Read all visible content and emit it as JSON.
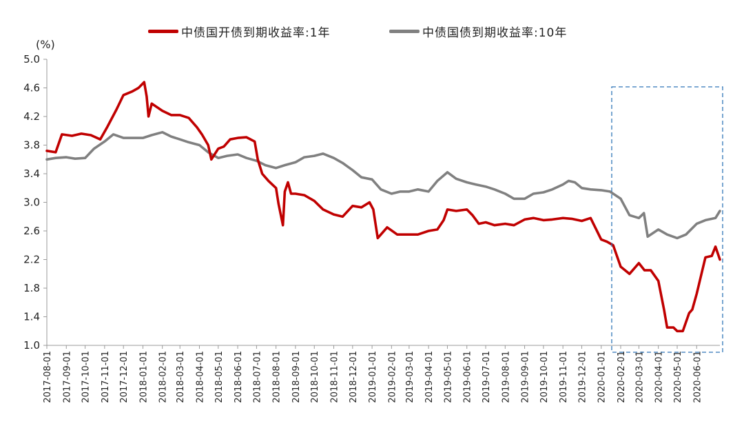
{
  "chart_data": {
    "type": "line",
    "unit_label": "(%)",
    "ylim": [
      1.0,
      5.0
    ],
    "y_ticks": [
      "1.0",
      "1.4",
      "1.8",
      "2.2",
      "2.6",
      "3.0",
      "3.4",
      "3.8",
      "4.2",
      "4.6",
      "5.0"
    ],
    "x_ticks": [
      "2017-08-01",
      "2017-09-01",
      "2017-10-01",
      "2017-11-01",
      "2017-12-01",
      "2018-01-01",
      "2018-02-01",
      "2018-03-01",
      "2018-04-01",
      "2018-05-01",
      "2018-06-01",
      "2018-07-01",
      "2018-08-01",
      "2018-09-01",
      "2018-10-01",
      "2018-11-01",
      "2018-12-01",
      "2019-01-01",
      "2019-02-01",
      "2019-03-01",
      "2019-04-01",
      "2019-05-01",
      "2019-06-01",
      "2019-07-01",
      "2019-08-01",
      "2019-09-01",
      "2019-10-01",
      "2019-11-01",
      "2019-12-01",
      "2020-01-01",
      "2020-02-01",
      "2020-03-01",
      "2020-04-01",
      "2020-05-01",
      "2020-06-01"
    ],
    "xlim": [
      "2017-08-01",
      "2020-07-08"
    ],
    "grid": false,
    "legend_position": "top-center",
    "annotation": "dashed-box 2020-01-01 to 2020-07-08",
    "series": [
      {
        "name": "中债国开债到期收益率:1年",
        "color": "#c00000",
        "x": [
          "2017-08-01",
          "2017-08-15",
          "2017-08-25",
          "2017-09-10",
          "2017-09-25",
          "2017-10-10",
          "2017-10-25",
          "2017-11-05",
          "2017-11-20",
          "2017-12-01",
          "2017-12-15",
          "2017-12-25",
          "2018-01-03",
          "2018-01-07",
          "2018-01-10",
          "2018-01-15",
          "2018-02-01",
          "2018-02-15",
          "2018-03-01",
          "2018-03-15",
          "2018-03-28",
          "2018-04-05",
          "2018-04-15",
          "2018-04-20",
          "2018-05-01",
          "2018-05-10",
          "2018-05-20",
          "2018-06-01",
          "2018-06-15",
          "2018-06-28",
          "2018-07-03",
          "2018-07-10",
          "2018-07-20",
          "2018-08-01",
          "2018-08-05",
          "2018-08-12",
          "2018-08-15",
          "2018-08-20",
          "2018-08-25",
          "2018-09-01",
          "2018-09-15",
          "2018-10-01",
          "2018-10-15",
          "2018-11-01",
          "2018-11-15",
          "2018-12-01",
          "2018-12-15",
          "2018-12-28",
          "2019-01-03",
          "2019-01-10",
          "2019-01-25",
          "2019-02-10",
          "2019-03-01",
          "2019-03-15",
          "2019-04-01",
          "2019-04-15",
          "2019-04-25",
          "2019-05-01",
          "2019-05-15",
          "2019-06-01",
          "2019-06-10",
          "2019-06-20",
          "2019-07-01",
          "2019-07-15",
          "2019-08-01",
          "2019-08-15",
          "2019-09-01",
          "2019-09-15",
          "2019-10-01",
          "2019-10-15",
          "2019-11-01",
          "2019-11-15",
          "2019-12-01",
          "2019-12-15",
          "2020-01-01",
          "2020-01-10",
          "2020-01-20",
          "2020-02-01",
          "2020-02-15",
          "2020-03-01",
          "2020-03-10",
          "2020-03-20",
          "2020-04-01",
          "2020-04-10",
          "2020-04-15",
          "2020-04-25",
          "2020-05-01",
          "2020-05-10",
          "2020-05-20",
          "2020-05-25",
          "2020-06-01",
          "2020-06-15",
          "2020-06-25",
          "2020-07-01",
          "2020-07-08"
        ],
        "values": [
          3.72,
          3.7,
          3.95,
          3.93,
          3.96,
          3.94,
          3.88,
          4.05,
          4.3,
          4.5,
          4.55,
          4.6,
          4.68,
          4.48,
          4.2,
          4.38,
          4.28,
          4.22,
          4.22,
          4.18,
          4.05,
          3.95,
          3.8,
          3.6,
          3.75,
          3.78,
          3.88,
          3.9,
          3.91,
          3.85,
          3.6,
          3.4,
          3.3,
          3.2,
          2.98,
          2.68,
          3.15,
          3.28,
          3.12,
          3.12,
          3.1,
          3.02,
          2.9,
          2.83,
          2.8,
          2.95,
          2.93,
          3.0,
          2.9,
          2.5,
          2.65,
          2.55,
          2.55,
          2.55,
          2.6,
          2.62,
          2.75,
          2.9,
          2.88,
          2.9,
          2.82,
          2.7,
          2.72,
          2.68,
          2.7,
          2.68,
          2.76,
          2.78,
          2.75,
          2.76,
          2.78,
          2.77,
          2.74,
          2.78,
          2.48,
          2.45,
          2.4,
          2.1,
          2.0,
          2.15,
          2.05,
          2.05,
          1.9,
          1.5,
          1.25,
          1.25,
          1.2,
          1.2,
          1.45,
          1.5,
          1.72,
          2.23,
          2.25,
          2.38,
          2.2
        ]
      },
      {
        "name": "中债国债到期收益率:10年",
        "color": "#808080",
        "x": [
          "2017-08-01",
          "2017-08-15",
          "2017-09-01",
          "2017-09-15",
          "2017-10-01",
          "2017-10-15",
          "2017-11-01",
          "2017-11-15",
          "2017-12-01",
          "2017-12-15",
          "2018-01-01",
          "2018-01-15",
          "2018-02-01",
          "2018-02-15",
          "2018-03-01",
          "2018-03-15",
          "2018-04-01",
          "2018-04-15",
          "2018-05-01",
          "2018-05-15",
          "2018-06-01",
          "2018-06-15",
          "2018-07-01",
          "2018-07-15",
          "2018-08-01",
          "2018-08-15",
          "2018-09-01",
          "2018-09-15",
          "2018-10-01",
          "2018-10-15",
          "2018-11-01",
          "2018-11-15",
          "2018-12-01",
          "2018-12-15",
          "2019-01-01",
          "2019-01-15",
          "2019-02-01",
          "2019-02-15",
          "2019-03-01",
          "2019-03-15",
          "2019-04-01",
          "2019-04-15",
          "2019-05-01",
          "2019-05-15",
          "2019-06-01",
          "2019-06-15",
          "2019-07-01",
          "2019-07-15",
          "2019-08-01",
          "2019-08-15",
          "2019-09-01",
          "2019-09-15",
          "2019-10-01",
          "2019-10-15",
          "2019-11-01",
          "2019-11-10",
          "2019-11-20",
          "2019-12-01",
          "2019-12-15",
          "2020-01-01",
          "2020-01-15",
          "2020-02-01",
          "2020-02-15",
          "2020-03-01",
          "2020-03-09",
          "2020-03-15",
          "2020-04-01",
          "2020-04-15",
          "2020-05-01",
          "2020-05-15",
          "2020-06-01",
          "2020-06-15",
          "2020-07-01",
          "2020-07-08"
        ],
        "values": [
          3.6,
          3.62,
          3.63,
          3.61,
          3.62,
          3.75,
          3.85,
          3.95,
          3.9,
          3.9,
          3.9,
          3.94,
          3.98,
          3.92,
          3.88,
          3.84,
          3.8,
          3.7,
          3.62,
          3.65,
          3.67,
          3.62,
          3.58,
          3.52,
          3.48,
          3.52,
          3.56,
          3.63,
          3.65,
          3.68,
          3.62,
          3.55,
          3.45,
          3.35,
          3.32,
          3.18,
          3.12,
          3.15,
          3.15,
          3.18,
          3.15,
          3.3,
          3.42,
          3.33,
          3.28,
          3.25,
          3.22,
          3.18,
          3.12,
          3.05,
          3.05,
          3.12,
          3.14,
          3.18,
          3.25,
          3.3,
          3.28,
          3.2,
          3.18,
          3.17,
          3.15,
          3.05,
          2.82,
          2.78,
          2.85,
          2.52,
          2.62,
          2.55,
          2.5,
          2.55,
          2.7,
          2.75,
          2.78,
          2.88
        ]
      }
    ]
  }
}
